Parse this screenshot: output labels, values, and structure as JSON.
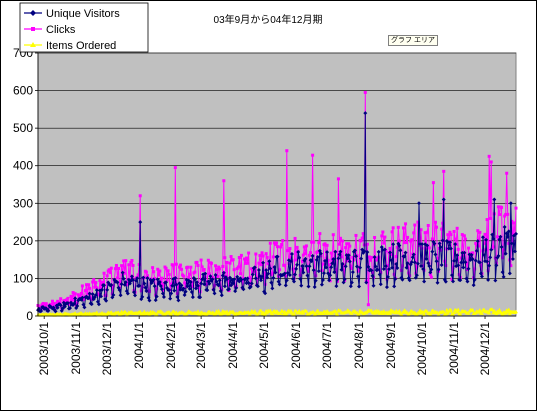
{
  "chart_data": {
    "type": "line",
    "title": "03年9月から04年12月期",
    "tooltip": "グラフ エリア",
    "ylim": [
      0,
      700
    ],
    "yticks": [
      0,
      100,
      200,
      300,
      400,
      500,
      600,
      700
    ],
    "x_date_range": [
      "2003-09-25",
      "2004-12-31"
    ],
    "xticks": [
      "2003/10/1",
      "2003/11/1",
      "2003/12/1",
      "2004/1/1",
      "2004/2/1",
      "2004/3/1",
      "2004/4/1",
      "2004/5/1",
      "2004/6/1",
      "2004/7/1",
      "2004/8/1",
      "2004/9/1",
      "2004/10/1",
      "2004/11/1",
      "2004/12/1"
    ],
    "grid": "horizontal",
    "legend_placement": "top-left",
    "plot_background": "#c0c0c0",
    "series": [
      {
        "name": "Unique Visitors",
        "color": "#000080",
        "marker": "diamond",
        "monthly_mean": [
          [
            "2003-09-25",
            18
          ],
          [
            "2003-10-15",
            25
          ],
          [
            "2003-11-15",
            50
          ],
          [
            "2003-12-15",
            95
          ],
          [
            "2004-01-15",
            80
          ],
          [
            "2004-02-15",
            85
          ],
          [
            "2004-03-15",
            95
          ],
          [
            "2004-04-15",
            100
          ],
          [
            "2004-05-15",
            130
          ],
          [
            "2004-06-15",
            145
          ],
          [
            "2004-07-15",
            140
          ],
          [
            "2004-08-15",
            150
          ],
          [
            "2004-09-15",
            160
          ],
          [
            "2004-10-15",
            165
          ],
          [
            "2004-11-15",
            150
          ],
          [
            "2004-12-15",
            190
          ]
        ],
        "peaks": [
          [
            "2004-01-02",
            250
          ],
          [
            "2004-08-07",
            540
          ],
          [
            "2004-09-28",
            300
          ],
          [
            "2004-10-22",
            310
          ],
          [
            "2004-12-10",
            310
          ],
          [
            "2004-12-26",
            300
          ]
        ]
      },
      {
        "name": "Clicks",
        "color": "#ff00ff",
        "marker": "square",
        "monthly_mean": [
          [
            "2003-09-25",
            25
          ],
          [
            "2003-10-15",
            35
          ],
          [
            "2003-11-15",
            75
          ],
          [
            "2003-12-15",
            125
          ],
          [
            "2004-01-15",
            105
          ],
          [
            "2004-02-15",
            115
          ],
          [
            "2004-03-15",
            125
          ],
          [
            "2004-04-15",
            135
          ],
          [
            "2004-05-15",
            165
          ],
          [
            "2004-06-15",
            185
          ],
          [
            "2004-07-15",
            180
          ],
          [
            "2004-08-15",
            185
          ],
          [
            "2004-09-15",
            200
          ],
          [
            "2004-10-15",
            205
          ],
          [
            "2004-11-15",
            185
          ],
          [
            "2004-12-15",
            235
          ]
        ],
        "peaks": [
          [
            "2004-01-02",
            320
          ],
          [
            "2004-02-05",
            395
          ],
          [
            "2004-03-23",
            360
          ],
          [
            "2004-05-23",
            440
          ],
          [
            "2004-06-17",
            428
          ],
          [
            "2004-07-12",
            365
          ],
          [
            "2004-08-07",
            595
          ],
          [
            "2004-08-10",
            30
          ],
          [
            "2004-10-12",
            355
          ],
          [
            "2004-10-22",
            385
          ],
          [
            "2004-12-05",
            425
          ],
          [
            "2004-12-07",
            410
          ],
          [
            "2004-12-22",
            380
          ]
        ]
      },
      {
        "name": "Items Ordered",
        "color": "#ffff00",
        "marker": "triangle",
        "monthly_mean": [
          [
            "2003-09-25",
            3
          ],
          [
            "2003-12-15",
            8
          ],
          [
            "2004-06-15",
            10
          ],
          [
            "2004-12-15",
            12
          ]
        ],
        "peaks": []
      }
    ]
  }
}
